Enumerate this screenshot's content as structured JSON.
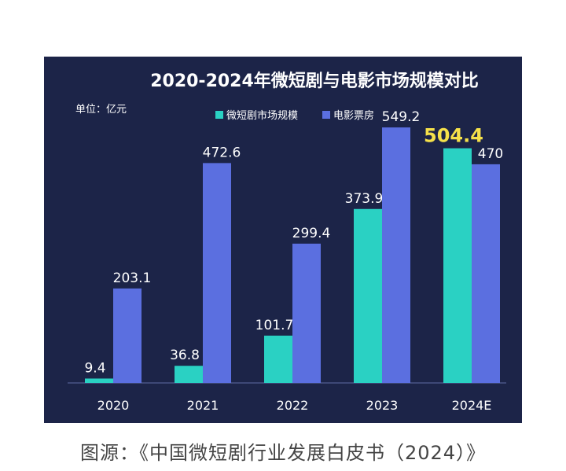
{
  "chart_data": {
    "type": "bar",
    "title": "2020-2024年微短剧与电影市场规模对比",
    "unit_label": "单位：亿元",
    "categories": [
      "2020",
      "2021",
      "2022",
      "2023",
      "2024E"
    ],
    "series": [
      {
        "name": "微短剧市场规模",
        "color": "#2ad1c3",
        "values": [
          9.4,
          36.8,
          101.7,
          373.9,
          504.4
        ],
        "labels": [
          "9.4",
          "36.8",
          "101.7",
          "373.9",
          "504.4"
        ]
      },
      {
        "name": "电影票房",
        "color": "#5b6fe0",
        "values": [
          203.1,
          472.6,
          299.4,
          549.2,
          470
        ],
        "labels": [
          "203.1",
          "472.6",
          "299.4",
          "549.2",
          "470"
        ]
      }
    ],
    "highlight_label_color": "#f5e14a",
    "ylim": [
      0,
      600
    ],
    "grid": false,
    "legend_position": "top-center"
  },
  "caption": "图源：《中国微短剧行业发展白皮书（2024）》"
}
